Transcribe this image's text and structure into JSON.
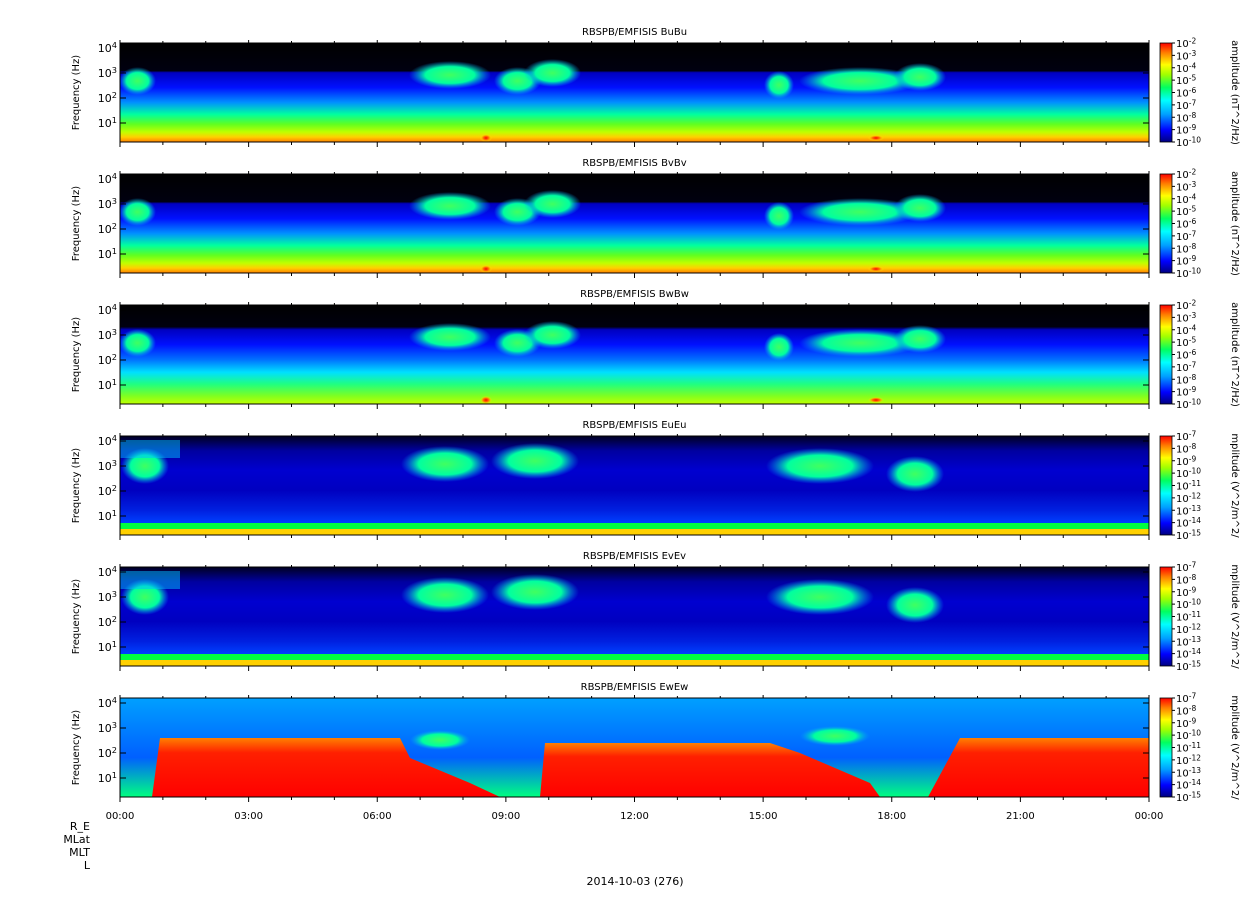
{
  "chart_data": [
    {
      "type": "heatmap",
      "title": "RBSPB/EMFISIS  BuBu",
      "ylabel": "Frequency (Hz)",
      "yscale": "log",
      "y_ticks": [
        "10^1",
        "10^2",
        "10^3",
        "10^4"
      ],
      "colorbar_label": "amplitude (nT^2/Hz)",
      "colorbar_ticks": [
        "10^-2",
        "10^-3",
        "10^-4",
        "10^-5",
        "10^-6",
        "10^-7",
        "10^-8",
        "10^-9",
        "10^-10"
      ],
      "colorbar_range": [
        -10,
        -2
      ]
    },
    {
      "type": "heatmap",
      "title": "RBSPB/EMFISIS  BvBv",
      "ylabel": "Frequency (Hz)",
      "yscale": "log",
      "y_ticks": [
        "10^1",
        "10^2",
        "10^3",
        "10^4"
      ],
      "colorbar_label": "amplitude (nT^2/Hz)",
      "colorbar_ticks": [
        "10^-2",
        "10^-3",
        "10^-4",
        "10^-5",
        "10^-6",
        "10^-7",
        "10^-8",
        "10^-9",
        "10^-10"
      ],
      "colorbar_range": [
        -10,
        -2
      ]
    },
    {
      "type": "heatmap",
      "title": "RBSPB/EMFISIS  BwBw",
      "ylabel": "Frequency (Hz)",
      "yscale": "log",
      "y_ticks": [
        "10^1",
        "10^2",
        "10^3",
        "10^4"
      ],
      "colorbar_label": "amplitude (nT^2/Hz)",
      "colorbar_ticks": [
        "10^-2",
        "10^-3",
        "10^-4",
        "10^-5",
        "10^-6",
        "10^-7",
        "10^-8",
        "10^-9",
        "10^-10"
      ],
      "colorbar_range": [
        -10,
        -2
      ]
    },
    {
      "type": "heatmap",
      "title": "RBSPB/EMFISIS  EuEu",
      "ylabel": "Frequency (Hz)",
      "yscale": "log",
      "y_ticks": [
        "10^1",
        "10^2",
        "10^3",
        "10^4"
      ],
      "colorbar_label": "mplitude (V^2/m^2/",
      "colorbar_ticks": [
        "10^-7",
        "10^-8",
        "10^-9",
        "10^-10",
        "10^-11",
        "10^-12",
        "10^-13",
        "10^-14",
        "10^-15"
      ],
      "colorbar_range": [
        -15,
        -7
      ]
    },
    {
      "type": "heatmap",
      "title": "RBSPB/EMFISIS  EvEv",
      "ylabel": "Frequency (Hz)",
      "yscale": "log",
      "y_ticks": [
        "10^1",
        "10^2",
        "10^3",
        "10^4"
      ],
      "colorbar_label": "mplitude (V^2/m^2/",
      "colorbar_ticks": [
        "10^-7",
        "10^-8",
        "10^-9",
        "10^-10",
        "10^-11",
        "10^-12",
        "10^-13",
        "10^-14",
        "10^-15"
      ],
      "colorbar_range": [
        -15,
        -7
      ]
    },
    {
      "type": "heatmap",
      "title": "RBSPB/EMFISIS  EwEw",
      "ylabel": "Frequency (Hz)",
      "yscale": "log",
      "y_ticks": [
        "10^1",
        "10^2",
        "10^3",
        "10^4"
      ],
      "colorbar_label": "mplitude (V^2/m^2/",
      "colorbar_ticks": [
        "10^-7",
        "10^-8",
        "10^-9",
        "10^-10",
        "10^-11",
        "10^-12",
        "10^-13",
        "10^-14",
        "10^-15"
      ],
      "colorbar_range": [
        -15,
        -7
      ],
      "x_ticks": [
        "00:00",
        "03:00",
        "06:00",
        "09:00",
        "12:00",
        "15:00",
        "18:00",
        "21:00",
        "00:00"
      ]
    }
  ],
  "footer": {
    "ephemeris_labels": [
      "R_E",
      "MLat",
      "MLT",
      "L"
    ],
    "date": "2014-10-03 (276)"
  },
  "colors": {
    "background_top": "#000000",
    "background_low": "#0000c0",
    "colormap": [
      "#000080",
      "#0000ff",
      "#00a0ff",
      "#00ffff",
      "#00ff80",
      "#80ff00",
      "#ffff00",
      "#ff8000",
      "#ff0000"
    ]
  }
}
